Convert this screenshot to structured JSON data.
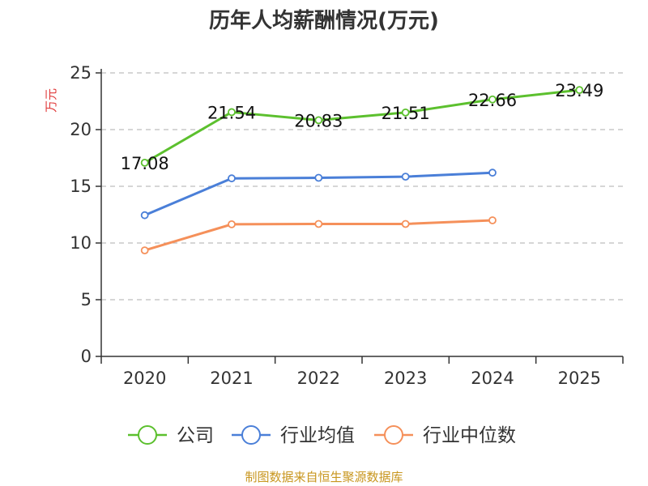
{
  "chart_data": {
    "type": "line",
    "title": "历年人均薪酬情况(万元)",
    "ylabel": "万元",
    "xlabel": "",
    "categories": [
      "2020",
      "2021",
      "2022",
      "2023",
      "2024",
      "2025"
    ],
    "ylim": [
      0,
      25
    ],
    "yticks": [
      0,
      5,
      10,
      15,
      20,
      25
    ],
    "grid": true,
    "legend_position": "bottom",
    "series": [
      {
        "name": "公司",
        "color": "#5cc02e",
        "values": [
          17.08,
          21.54,
          20.83,
          21.51,
          22.66,
          23.49
        ],
        "labels": [
          "17.08",
          "21.54",
          "20.83",
          "21.51",
          "22.66",
          "23.49"
        ]
      },
      {
        "name": "行业均值",
        "color": "#4a7fd8",
        "values": [
          12.45,
          15.7,
          15.75,
          15.85,
          16.2,
          null
        ]
      },
      {
        "name": "行业中位数",
        "color": "#f5905a",
        "values": [
          9.35,
          11.65,
          11.68,
          11.68,
          12.0,
          null
        ]
      }
    ]
  },
  "footer": "制图数据来自恒生聚源数据库"
}
